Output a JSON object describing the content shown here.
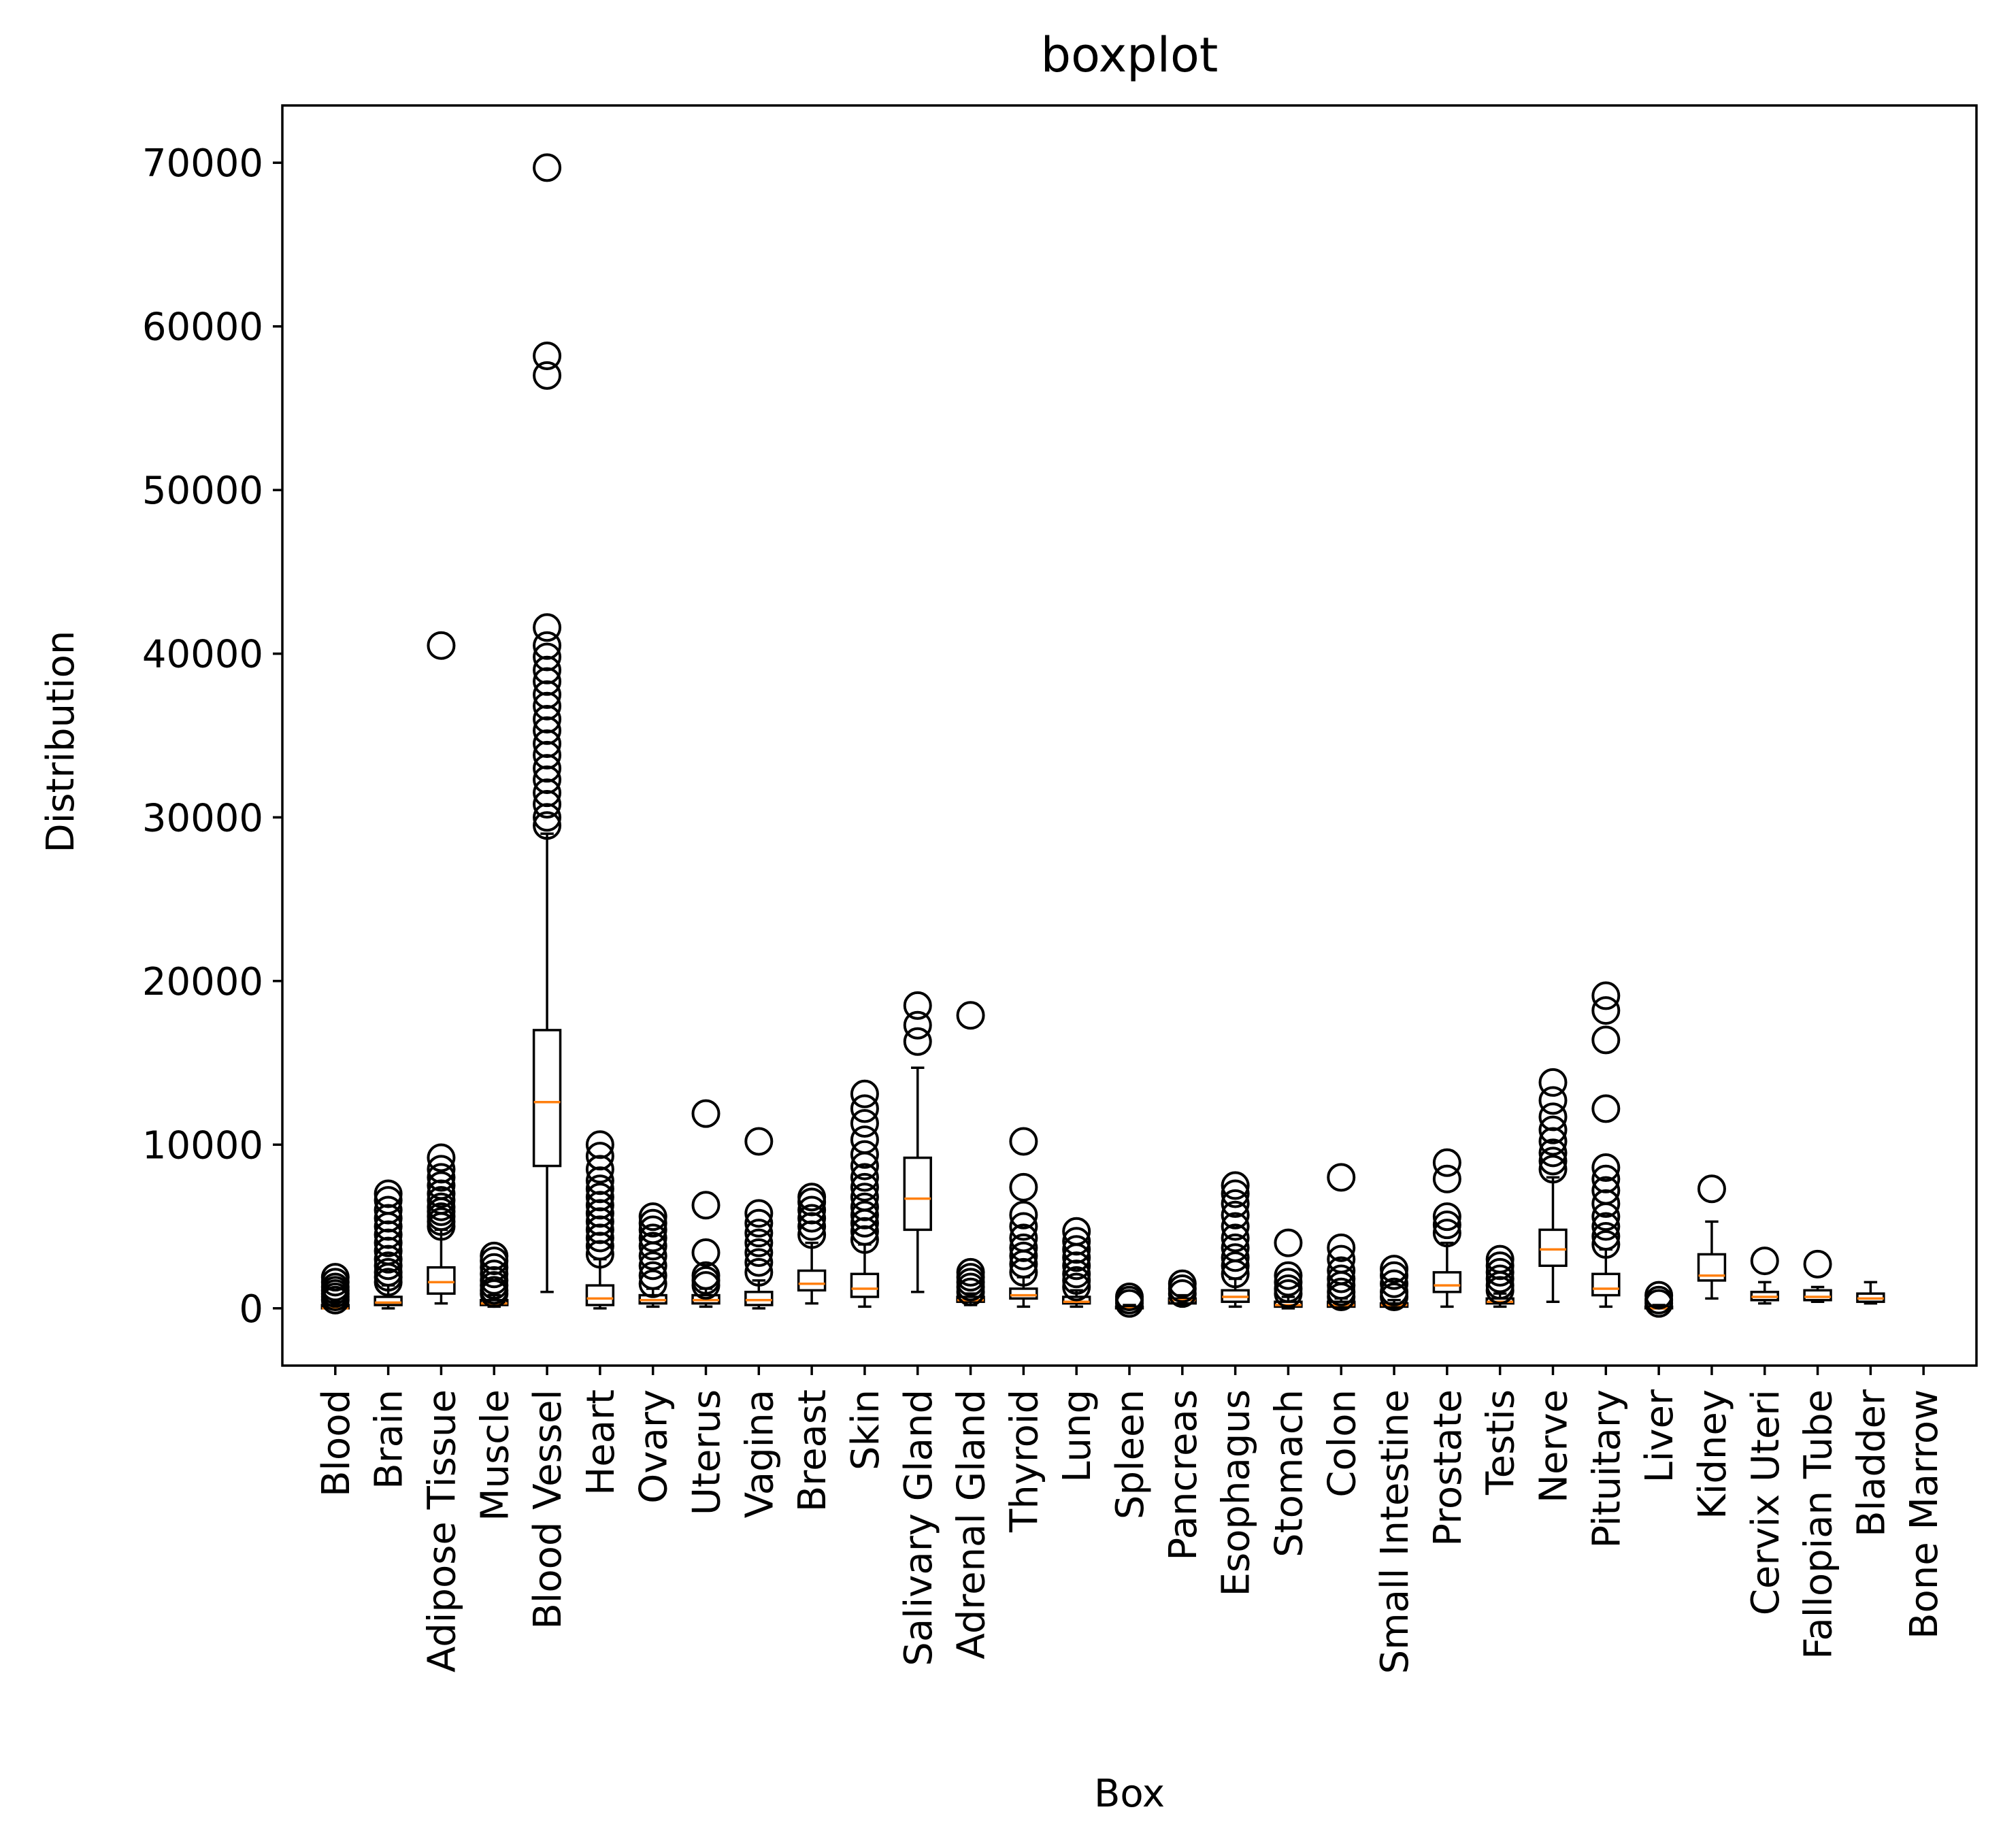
{
  "chart_data": {
    "type": "boxplot",
    "title": "boxplot",
    "xlabel": "Box",
    "ylabel": "Distribution",
    "ylim": [
      -3500,
      73500
    ],
    "yticks": [
      0,
      10000,
      20000,
      30000,
      40000,
      50000,
      60000,
      70000
    ],
    "grid": false,
    "colors": {
      "box": "#000000",
      "median": "#ff7f0e",
      "flier": "#000000",
      "background": "#ffffff"
    },
    "categories": [
      "Blood",
      "Brain",
      "Adipose Tissue",
      "Muscle",
      "Blood Vessel",
      "Heart",
      "Ovary",
      "Uterus",
      "Vagina",
      "Breast",
      "Skin",
      "Salivary Gland",
      "Adrenal Gland",
      "Thyroid",
      "Lung",
      "Spleen",
      "Pancreas",
      "Esophagus",
      "Stomach",
      "Colon",
      "Small Intestine",
      "Prostate",
      "Testis",
      "Nerve",
      "Pituitary",
      "Liver",
      "Kidney",
      "Cervix Uteri",
      "Fallopian Tube",
      "Bladder",
      "Bone Marrow"
    ],
    "boxes": [
      {
        "label": "Blood",
        "whislo": 0,
        "q1": 0,
        "med": 0,
        "q3": 200,
        "whishi": 400,
        "fliers": [
          500,
          700,
          900,
          1100,
          1300,
          1600,
          1900
        ]
      },
      {
        "label": "Brain",
        "whislo": 0,
        "q1": 200,
        "med": 350,
        "q3": 700,
        "whishi": 1400,
        "fliers": [
          1600,
          1900,
          2200,
          2600,
          3000,
          3500,
          4000,
          4500,
          5000,
          5500,
          6000,
          6600,
          7000
        ]
      },
      {
        "label": "Adipose Tissue",
        "whislo": 300,
        "q1": 900,
        "med": 1600,
        "q3": 2500,
        "whishi": 4800,
        "fliers": [
          5000,
          5300,
          5600,
          5900,
          6200,
          6600,
          7000,
          7500,
          8000,
          8500,
          9200,
          40500
        ]
      },
      {
        "label": "Muscle",
        "whislo": 100,
        "q1": 200,
        "med": 300,
        "q3": 500,
        "whishi": 800,
        "fliers": [
          900,
          1100,
          1400,
          1700,
          2100,
          2500,
          2900,
          3200
        ]
      },
      {
        "label": "Blood Vessel",
        "whislo": 1000,
        "q1": 8700,
        "med": 12600,
        "q3": 17000,
        "whishi": 29000,
        "fliers": [
          29500,
          30000,
          30800,
          31500,
          32300,
          33000,
          33800,
          34500,
          35300,
          36000,
          36800,
          37500,
          38300,
          39000,
          39800,
          40500,
          41600,
          57000,
          58200,
          69700
        ]
      },
      {
        "label": "Heart",
        "whislo": 0,
        "q1": 200,
        "med": 600,
        "q3": 1400,
        "whishi": 3000,
        "fliers": [
          3300,
          3800,
          4300,
          4800,
          5300,
          5800,
          6300,
          6800,
          7300,
          7800,
          8500,
          9300,
          10000
        ]
      },
      {
        "label": "Ovary",
        "whislo": 100,
        "q1": 300,
        "med": 500,
        "q3": 800,
        "whishi": 1200,
        "fliers": [
          1500,
          2000,
          2600,
          3200,
          3800,
          4300,
          4800,
          5200,
          5600
        ]
      },
      {
        "label": "Uterus",
        "whislo": 100,
        "q1": 300,
        "med": 500,
        "q3": 800,
        "whishi": 1200,
        "fliers": [
          1400,
          1700,
          2000,
          3400,
          6300,
          11900
        ]
      },
      {
        "label": "Vagina",
        "whislo": 0,
        "q1": 200,
        "med": 500,
        "q3": 1000,
        "whishi": 1700,
        "fliers": [
          2200,
          2800,
          3400,
          4000,
          4600,
          5200,
          5800,
          10200
        ]
      },
      {
        "label": "Breast",
        "whislo": 300,
        "q1": 1100,
        "med": 1500,
        "q3": 2300,
        "whishi": 4000,
        "fliers": [
          4500,
          5000,
          5500,
          6000,
          6500,
          6800
        ]
      },
      {
        "label": "Skin",
        "whislo": 100,
        "q1": 700,
        "med": 1200,
        "q3": 2100,
        "whishi": 3900,
        "fliers": [
          4200,
          4700,
          5200,
          5700,
          6200,
          6800,
          7400,
          8000,
          8700,
          9400,
          10300,
          11300,
          12200,
          13100
        ]
      },
      {
        "label": "Salivary Gland",
        "whislo": 1000,
        "q1": 4800,
        "med": 6700,
        "q3": 9200,
        "whishi": 14700,
        "fliers": [
          16300,
          17300,
          18500
        ]
      },
      {
        "label": "Adrenal Gland",
        "whislo": 200,
        "q1": 400,
        "med": 500,
        "q3": 700,
        "whishi": 900,
        "fliers": [
          1000,
          1300,
          1600,
          1900,
          2200,
          17900
        ]
      },
      {
        "label": "Thyroid",
        "whislo": 100,
        "q1": 600,
        "med": 800,
        "q3": 1200,
        "whishi": 1900,
        "fliers": [
          2200,
          2700,
          3200,
          3700,
          4300,
          5000,
          5700,
          7400,
          10200
        ]
      },
      {
        "label": "Lung",
        "whislo": 100,
        "q1": 300,
        "med": 400,
        "q3": 700,
        "whishi": 1100,
        "fliers": [
          1300,
          1700,
          2100,
          2600,
          3100,
          3600,
          4100,
          4700
        ]
      },
      {
        "label": "Spleen",
        "whislo": 0,
        "q1": 0,
        "med": 0,
        "q3": 100,
        "whishi": 200,
        "fliers": [
          300,
          500,
          700
        ]
      },
      {
        "label": "Pancreas",
        "whislo": 200,
        "q1": 300,
        "med": 500,
        "q3": 600,
        "whishi": 800,
        "fliers": [
          900,
          1200,
          1500
        ]
      },
      {
        "label": "Esophagus",
        "whislo": 100,
        "q1": 400,
        "med": 700,
        "q3": 1100,
        "whishi": 1800,
        "fliers": [
          2100,
          2600,
          3100,
          3700,
          4300,
          5000,
          5700,
          6400,
          7000,
          7500
        ]
      },
      {
        "label": "Stomach",
        "whislo": 0,
        "q1": 100,
        "med": 200,
        "q3": 400,
        "whishi": 700,
        "fliers": [
          900,
          1200,
          1600,
          2000,
          4000
        ]
      },
      {
        "label": "Colon",
        "whislo": 0,
        "q1": 100,
        "med": 200,
        "q3": 400,
        "whishi": 600,
        "fliers": [
          700,
          1000,
          1400,
          1800,
          2300,
          3000,
          3700,
          8000
        ]
      },
      {
        "label": "Small Intestine",
        "whislo": 0,
        "q1": 100,
        "med": 200,
        "q3": 300,
        "whishi": 500,
        "fliers": [
          700,
          1000,
          1500,
          2000,
          2400
        ]
      },
      {
        "label": "Prostate",
        "whislo": 100,
        "q1": 1000,
        "med": 1400,
        "q3": 2200,
        "whishi": 4000,
        "fliers": [
          4600,
          5100,
          5600,
          7900,
          8900
        ]
      },
      {
        "label": "Testis",
        "whislo": 100,
        "q1": 300,
        "med": 400,
        "q3": 600,
        "whishi": 900,
        "fliers": [
          1100,
          1400,
          1800,
          2200,
          2600,
          3000
        ]
      },
      {
        "label": "Nerve",
        "whislo": 400,
        "q1": 2600,
        "med": 3600,
        "q3": 4800,
        "whishi": 8000,
        "fliers": [
          8500,
          9000,
          9500,
          10200,
          10900,
          11700,
          12700,
          13800
        ]
      },
      {
        "label": "Pituitary",
        "whislo": 100,
        "q1": 800,
        "med": 1200,
        "q3": 2100,
        "whishi": 3600,
        "fliers": [
          3900,
          4400,
          5000,
          5600,
          6400,
          7200,
          7900,
          8600,
          12200,
          16400,
          18200,
          19100
        ]
      },
      {
        "label": "Liver",
        "whislo": 0,
        "q1": 0,
        "med": 0,
        "q3": 100,
        "whishi": 200,
        "fliers": [
          300,
          500,
          800
        ]
      },
      {
        "label": "Kidney",
        "whislo": 600,
        "q1": 1700,
        "med": 2000,
        "q3": 3300,
        "whishi": 5300,
        "fliers": [
          7300
        ]
      },
      {
        "label": "Cervix Uteri",
        "whislo": 300,
        "q1": 500,
        "med": 700,
        "q3": 1000,
        "whishi": 1600,
        "fliers": [
          2900
        ]
      },
      {
        "label": "Fallopian Tube",
        "whislo": 400,
        "q1": 500,
        "med": 700,
        "q3": 1100,
        "whishi": 1300,
        "fliers": [
          2700
        ]
      },
      {
        "label": "Bladder",
        "whislo": 300,
        "q1": 400,
        "med": 600,
        "q3": 900,
        "whishi": 1600,
        "fliers": []
      },
      {
        "label": "Bone Marrow",
        "whislo": null,
        "q1": null,
        "med": null,
        "q3": null,
        "whishi": null,
        "fliers": []
      }
    ]
  }
}
